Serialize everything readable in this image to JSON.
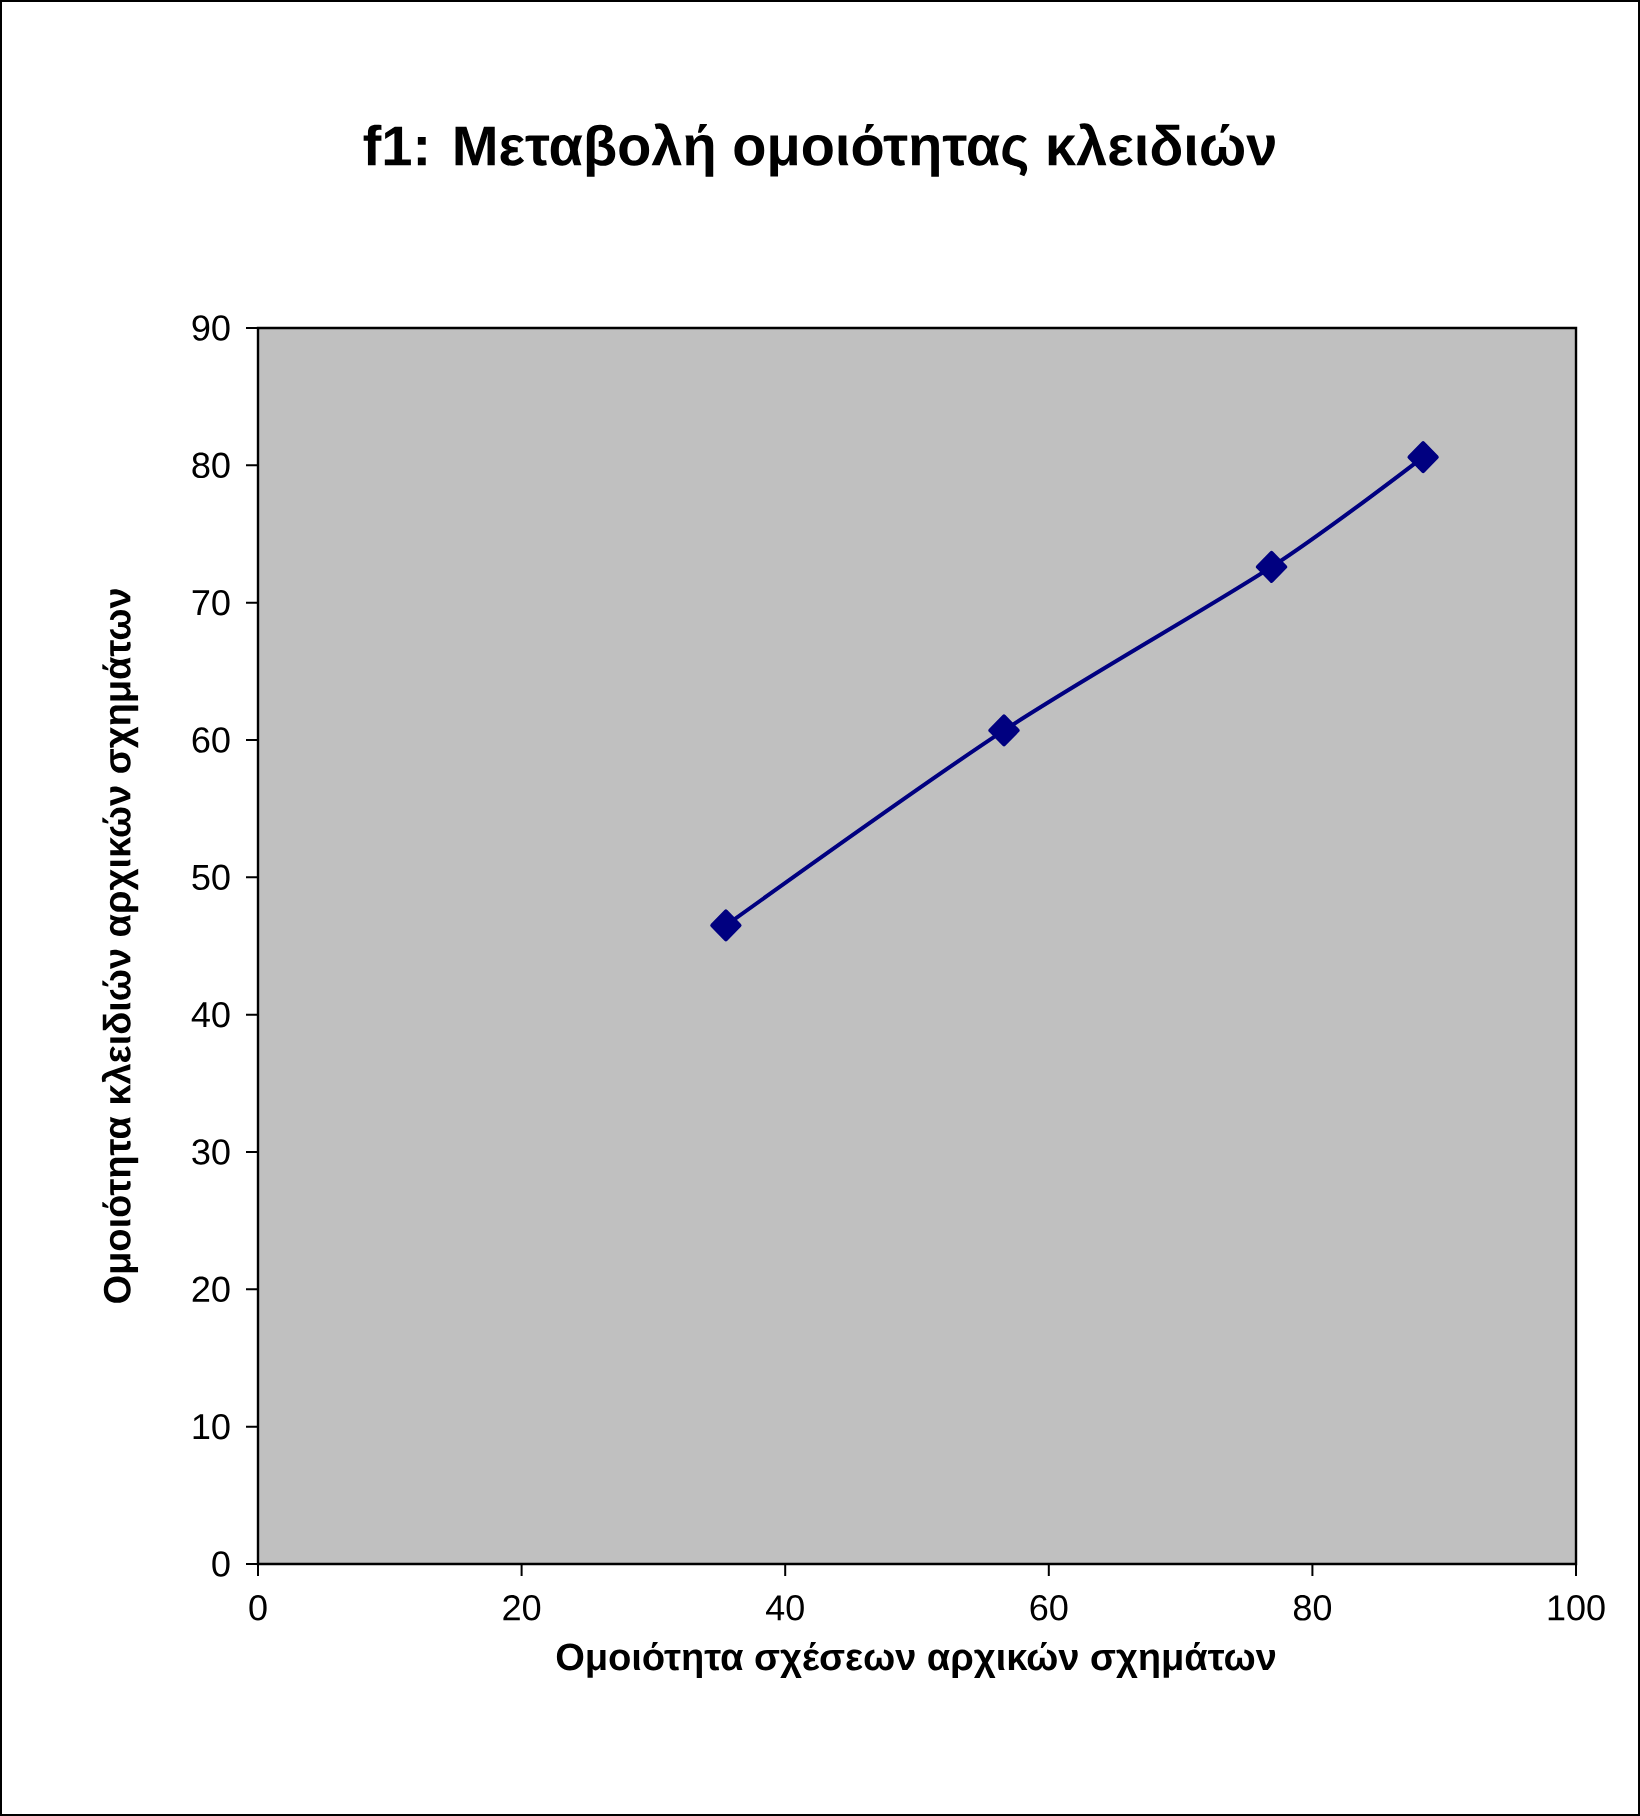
{
  "chart_data": {
    "type": "line",
    "title": "f1: Μεταβολή ομοιότητας κλειδιών",
    "xlabel": "Ομοιότητα σχέσεων αρχικών σχημάτων",
    "ylabel": "Ομοιότητα κλειδιών αρχικών σχημάτων",
    "x": [
      35.5,
      56.6,
      76.9,
      88.4
    ],
    "series": [
      {
        "color": "#000080",
        "values": [
          46.5,
          60.7,
          72.6,
          80.6
        ]
      }
    ],
    "xlim": [
      0,
      100
    ],
    "ylim": [
      0,
      90
    ],
    "xticks": [
      0,
      20,
      40,
      60,
      80,
      100
    ],
    "yticks": [
      0,
      10,
      20,
      30,
      40,
      50,
      60,
      70,
      80,
      90
    ],
    "marker": "diamond",
    "line_style": "solid"
  }
}
